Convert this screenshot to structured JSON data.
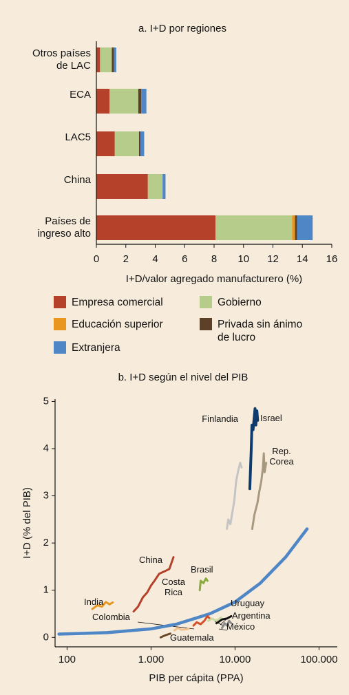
{
  "chart_data": [
    {
      "type": "bar",
      "orientation": "horizontal",
      "stacked": true,
      "title": "a. I+D por regiones",
      "categories": [
        "Otros países de LAC",
        "ECA",
        "LAC5",
        "China",
        "Países de ingreso alto"
      ],
      "series": [
        {
          "name": "Empresa comercial",
          "color": "#b5412b",
          "values": [
            0.25,
            0.9,
            1.25,
            3.5,
            8.1
          ]
        },
        {
          "name": "Gobierno",
          "color": "#b6cc8b",
          "values": [
            0.8,
            1.95,
            1.65,
            1.0,
            5.2
          ]
        },
        {
          "name": "Educación superior",
          "color": "#e8961e",
          "values": [
            0,
            0,
            0,
            0,
            0.2
          ]
        },
        {
          "name": "Privada sin ánimo de lucro",
          "color": "#5c4128",
          "values": [
            0.15,
            0.2,
            0.1,
            0,
            0.15
          ]
        },
        {
          "name": "Extranjera",
          "color": "#4f86c6",
          "values": [
            0.15,
            0.35,
            0.25,
            0.2,
            1.05
          ]
        }
      ],
      "xlim": [
        0,
        16
      ],
      "xticks": [
        0,
        2,
        4,
        6,
        8,
        10,
        12,
        14,
        16
      ],
      "xlabel": "I+D/valor agregado manufacturero (%)"
    },
    {
      "type": "line",
      "xscale": "log",
      "title": "b. I+D según el nivel del PIB",
      "xlabel": "PIB per cápita (PPA)",
      "ylabel": "I+D (% del PIB)",
      "xlim": [
        72,
        165000
      ],
      "ylim": [
        -0.2,
        5.05
      ],
      "xticks": [
        100,
        {
          "value": 1000,
          "label": "1.000"
        },
        {
          "value": 10000,
          "label": "10.000"
        },
        {
          "value": 100000,
          "label": "100.000"
        }
      ],
      "yticks": [
        0,
        1,
        2,
        3,
        4,
        5
      ],
      "series": [
        {
          "color": "#4f86c6",
          "x": [
            80,
            300,
            1000,
            2000,
            5000,
            10000,
            20000,
            40000,
            72000
          ],
          "values": [
            0.07,
            0.1,
            0.18,
            0.28,
            0.5,
            0.75,
            1.15,
            1.7,
            2.3
          ]
        },
        {
          "name": "Israel",
          "color": "#0d3b6e",
          "x": [
            15000,
            15300,
            15600,
            15900,
            16400,
            16800,
            17300,
            17700,
            18200,
            18600
          ],
          "values": [
            3.15,
            3.6,
            4.0,
            4.5,
            4.4,
            4.6,
            4.85,
            4.5,
            4.8,
            4.6
          ]
        },
        {
          "name": "Finlandia",
          "color": "#c4c4c4",
          "x": [
            8000,
            8300,
            8800,
            9200,
            9800,
            10300,
            10800,
            11500,
            12000
          ],
          "values": [
            2.3,
            2.5,
            2.4,
            2.6,
            2.9,
            3.3,
            3.5,
            3.7,
            3.6
          ]
        },
        {
          "name": "Rep. Corea",
          "color": "#a89880",
          "x": [
            16000,
            17000,
            18500,
            19500,
            20500,
            21500,
            22000,
            22500,
            23500
          ],
          "values": [
            2.3,
            2.6,
            2.85,
            3.1,
            3.3,
            3.6,
            3.9,
            3.5,
            3.7
          ]
        },
        {
          "name": "China",
          "color": "#b5412b",
          "x": [
            620,
            700,
            800,
            900,
            1000,
            1100,
            1250,
            1450,
            1650,
            1850
          ],
          "values": [
            0.55,
            0.65,
            0.85,
            0.95,
            1.1,
            1.2,
            1.35,
            1.4,
            1.45,
            1.7
          ]
        },
        {
          "name": "Brasil",
          "color": "#8aaa40",
          "x": [
            3800,
            3900,
            4200,
            4500,
            4700
          ],
          "values": [
            1.0,
            1.2,
            1.15,
            1.25,
            1.2
          ]
        },
        {
          "name": "India",
          "color": "#e8961e",
          "x": [
            200,
            230,
            260,
            290,
            320,
            350
          ],
          "values": [
            0.6,
            0.68,
            0.65,
            0.75,
            0.7,
            0.74
          ]
        },
        {
          "name": "Costa Rica",
          "color": "#d2502a",
          "x": [
            3200,
            3500,
            3900,
            4300,
            4700,
            5000
          ],
          "values": [
            0.25,
            0.32,
            0.28,
            0.35,
            0.45,
            0.4
          ]
        },
        {
          "name": "Colombia",
          "color": "#f2c08a",
          "x": [
            1900,
            2100,
            2300,
            2600,
            2800
          ],
          "values": [
            0.15,
            0.2,
            0.16,
            0.17,
            0.18
          ]
        },
        {
          "name": "Guatemala",
          "color": "#6b4a2b",
          "x": [
            1300,
            1500,
            1700
          ],
          "values": [
            0.0,
            0.05,
            0.08
          ]
        },
        {
          "name": "Uruguay",
          "color": "#111111",
          "x": [
            6000,
            7000,
            8000,
            9000
          ],
          "values": [
            0.3,
            0.38,
            0.4,
            0.45
          ]
        },
        {
          "name": "Argentina",
          "color": "#c8d8a0",
          "x": [
            4800,
            5300,
            6000,
            6800
          ],
          "values": [
            0.35,
            0.4,
            0.35,
            0.42
          ]
        },
        {
          "name": "México",
          "color": "#888888",
          "x": [
            7000,
            7500,
            8000,
            8500,
            9000
          ],
          "values": [
            0.2,
            0.3,
            0.25,
            0.35,
            0.3
          ]
        }
      ]
    }
  ]
}
